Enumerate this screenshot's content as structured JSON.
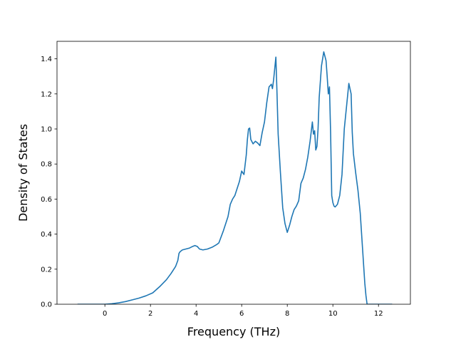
{
  "chart_data": {
    "type": "line",
    "title": "",
    "xlabel": "Frequency (THz)",
    "ylabel": "Density of States",
    "xlim": [
      -2.1,
      13.4
    ],
    "ylim": [
      0.0,
      1.5
    ],
    "xticks": [
      0,
      2,
      4,
      6,
      8,
      10,
      12
    ],
    "yticks": [
      0.0,
      0.2,
      0.4,
      0.6,
      0.8,
      1.0,
      1.2,
      1.4
    ],
    "xtick_labels": [
      "0",
      "2",
      "4",
      "6",
      "8",
      "10",
      "12"
    ],
    "ytick_labels": [
      "0.0",
      "0.2",
      "0.4",
      "0.6",
      "0.8",
      "1.0",
      "1.2",
      "1.4"
    ],
    "grid": false,
    "legend": "none",
    "line_color": "#1f77b4",
    "series": [
      {
        "x": [
          -1.2,
          -0.5,
          0.0,
          0.3,
          0.6,
          0.9,
          1.2,
          1.5,
          1.8,
          2.1,
          2.4,
          2.7,
          2.9,
          3.1,
          3.2,
          3.25,
          3.3,
          3.4,
          3.55,
          3.7,
          3.85,
          3.95,
          4.05,
          4.15,
          4.3,
          4.5,
          4.7,
          4.9,
          5.0,
          5.2,
          5.4,
          5.5,
          5.6,
          5.7,
          5.8,
          5.9,
          6.0,
          6.1,
          6.2,
          6.25,
          6.3,
          6.35,
          6.4,
          6.5,
          6.6,
          6.7,
          6.8,
          6.9,
          7.0,
          7.1,
          7.2,
          7.3,
          7.35,
          7.4,
          7.5,
          7.55,
          7.6,
          7.7,
          7.8,
          7.9,
          8.0,
          8.1,
          8.2,
          8.3,
          8.4,
          8.5,
          8.6,
          8.7,
          8.8,
          8.9,
          9.0,
          9.1,
          9.15,
          9.2,
          9.25,
          9.3,
          9.35,
          9.4,
          9.5,
          9.6,
          9.7,
          9.75,
          9.8,
          9.85,
          9.9,
          9.95,
          10.0,
          10.05,
          10.1,
          10.2,
          10.3,
          10.4,
          10.5,
          10.6,
          10.7,
          10.8,
          10.85,
          10.9,
          11.0,
          11.1,
          11.2,
          11.3,
          11.4,
          11.45,
          11.5,
          11.6,
          12.6
        ],
        "y": [
          0.0,
          0.0,
          0.0,
          0.003,
          0.008,
          0.015,
          0.025,
          0.035,
          0.048,
          0.065,
          0.1,
          0.14,
          0.175,
          0.215,
          0.25,
          0.29,
          0.3,
          0.31,
          0.315,
          0.32,
          0.33,
          0.335,
          0.33,
          0.315,
          0.31,
          0.315,
          0.325,
          0.34,
          0.35,
          0.42,
          0.5,
          0.57,
          0.6,
          0.62,
          0.66,
          0.7,
          0.76,
          0.74,
          0.85,
          0.94,
          1.0,
          1.005,
          0.94,
          0.915,
          0.93,
          0.92,
          0.905,
          0.98,
          1.04,
          1.15,
          1.24,
          1.255,
          1.23,
          1.28,
          1.41,
          1.2,
          0.97,
          0.75,
          0.55,
          0.46,
          0.41,
          0.45,
          0.5,
          0.54,
          0.56,
          0.59,
          0.69,
          0.72,
          0.77,
          0.84,
          0.93,
          1.04,
          0.97,
          0.99,
          0.88,
          0.9,
          1.0,
          1.18,
          1.36,
          1.44,
          1.39,
          1.3,
          1.2,
          1.24,
          0.98,
          0.62,
          0.58,
          0.56,
          0.555,
          0.57,
          0.62,
          0.74,
          1.0,
          1.13,
          1.26,
          1.2,
          0.98,
          0.86,
          0.75,
          0.65,
          0.52,
          0.32,
          0.12,
          0.05,
          0.0,
          0.0,
          0.0
        ]
      }
    ]
  }
}
